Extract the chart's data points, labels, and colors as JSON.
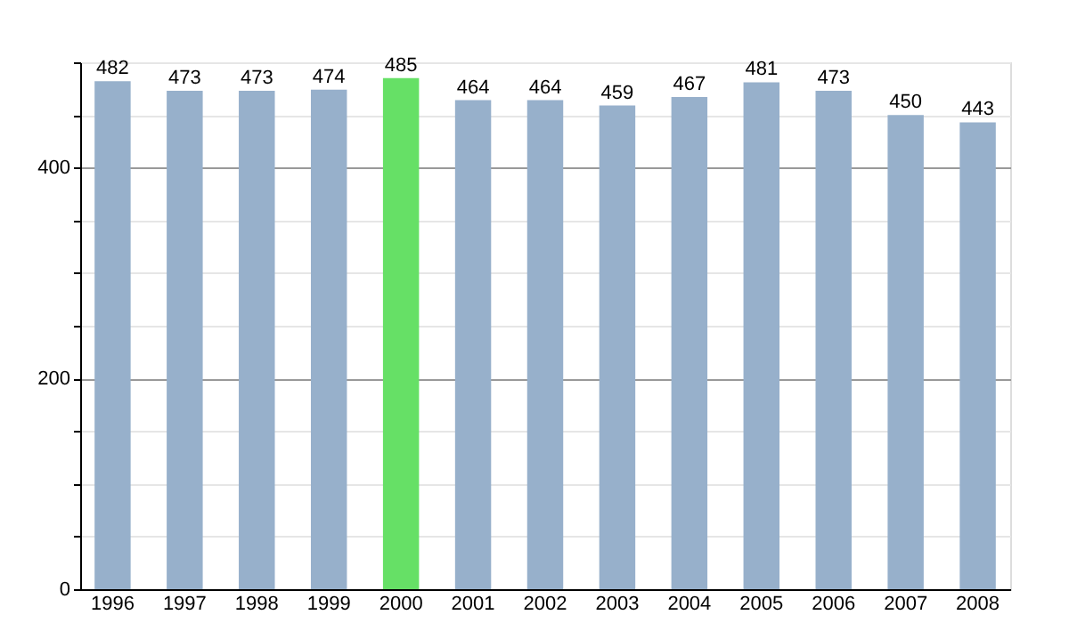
{
  "chart_data": {
    "type": "bar",
    "categories": [
      "1996",
      "1997",
      "1998",
      "1999",
      "2000",
      "2001",
      "2002",
      "2003",
      "2004",
      "2005",
      "2006",
      "2007",
      "2008"
    ],
    "values": [
      482,
      473,
      473,
      474,
      485,
      464,
      464,
      459,
      467,
      481,
      473,
      450,
      443
    ],
    "colors": [
      "#97b0cb",
      "#97b0cb",
      "#97b0cb",
      "#97b0cb",
      "#66e066",
      "#97b0cb",
      "#97b0cb",
      "#97b0cb",
      "#97b0cb",
      "#97b0cb",
      "#97b0cb",
      "#97b0cb",
      "#97b0cb"
    ],
    "ylim": [
      0,
      500
    ],
    "yticks": [
      0,
      {
        "value": 50,
        "label": null
      },
      {
        "value": 100,
        "label": null
      },
      {
        "value": 150,
        "label": null
      },
      200,
      {
        "value": 250,
        "label": null
      },
      {
        "value": 300,
        "label": null
      },
      {
        "value": 350,
        "label": null
      },
      400,
      {
        "value": 450,
        "label": null
      },
      {
        "value": 500,
        "label": null
      }
    ],
    "grid": "y",
    "data_labels": true
  }
}
